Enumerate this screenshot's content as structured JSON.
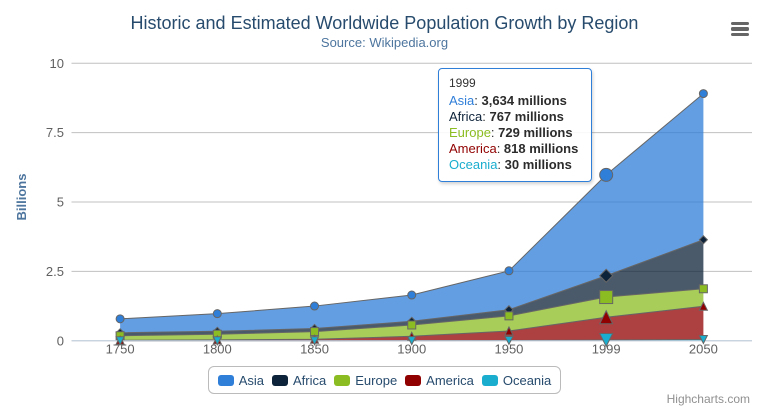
{
  "chart": {
    "credits": "Highcharts.com",
    "context_menu_icon": "hamburger-menu-icon",
    "colors": {
      "title": "#274b6d",
      "subtitle": "#4d759e",
      "axis_labels": "#606060",
      "axis_line": "#c0d0e0",
      "gridline": "#c0c0c0",
      "yaxis_title": "#4d759e",
      "legend_text": "#274b6d",
      "legend_border": "#bbbbbb",
      "credits": "#909090",
      "series_edge_line": "#666666",
      "tooltip_border": "#2f7ed8",
      "tooltip_text": "#333333"
    }
  },
  "chart_data": {
    "type": "area",
    "stacking": "normal",
    "title": "Historic and Estimated Worldwide Population Growth by Region",
    "subtitle": "Source: Wikipedia.org",
    "categories": [
      "1750",
      "1800",
      "1850",
      "1900",
      "1950",
      "1999",
      "2050"
    ],
    "xlabel": "",
    "ylabel": "Billions",
    "ylim": [
      0,
      10
    ],
    "ytick_labels": [
      "0",
      "2.5",
      "5",
      "7.5",
      "10"
    ],
    "ytick_values": [
      0,
      2.5,
      5,
      7.5,
      10
    ],
    "value_unit": "millions",
    "grid": true,
    "legend_position": "bottom",
    "series": [
      {
        "name": "Asia",
        "color": "#2f7ed8",
        "marker": "circle",
        "values": [
          502,
          635,
          809,
          947,
          1402,
          3634,
          5268
        ]
      },
      {
        "name": "Africa",
        "color": "#0d233a",
        "marker": "diamond",
        "values": [
          106,
          107,
          111,
          133,
          221,
          767,
          1766
        ]
      },
      {
        "name": "Europe",
        "color": "#8bbc21",
        "marker": "square",
        "values": [
          163,
          203,
          276,
          408,
          547,
          729,
          628
        ]
      },
      {
        "name": "America",
        "color": "#910000",
        "marker": "triangle",
        "values": [
          18,
          31,
          54,
          156,
          339,
          818,
          1201
        ]
      },
      {
        "name": "Oceania",
        "color": "#1aadce",
        "marker": "triangle-down",
        "values": [
          2,
          2,
          2,
          6,
          13,
          30,
          46
        ]
      }
    ]
  },
  "tooltip": {
    "header": "1999",
    "category_index": 5,
    "rows": [
      {
        "label": "Asia",
        "value": "3,634 millions"
      },
      {
        "label": "Africa",
        "value": "767 millions"
      },
      {
        "label": "Europe",
        "value": "729 millions"
      },
      {
        "label": "America",
        "value": "818 millions"
      },
      {
        "label": "Oceania",
        "value": "30 millions"
      }
    ]
  }
}
